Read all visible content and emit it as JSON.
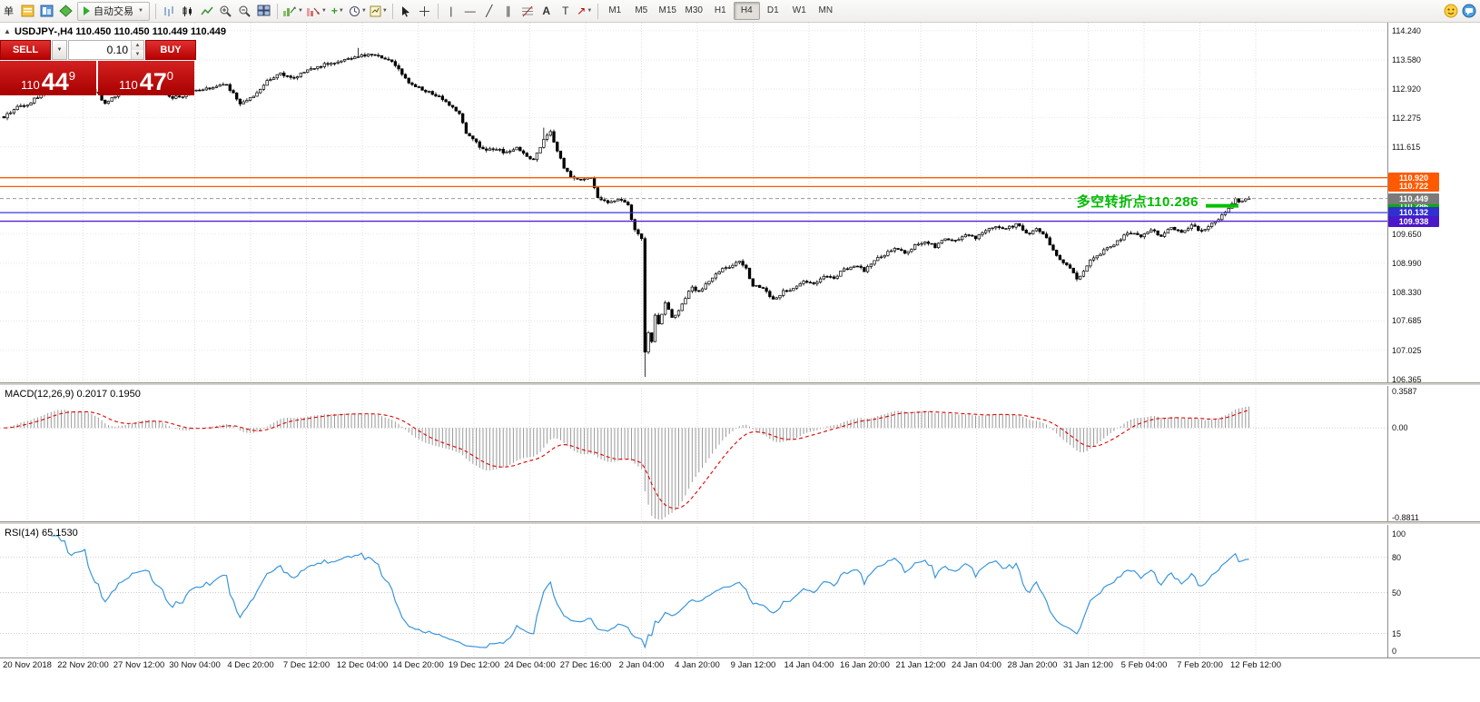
{
  "toolbar": {
    "left_text": "单",
    "autotrading_label": "自动交易",
    "timeframes": [
      "M1",
      "M5",
      "M15",
      "M30",
      "H1",
      "H4",
      "D1",
      "W1",
      "MN"
    ],
    "active_timeframe": "H4",
    "icon_names": [
      "new-order-icon",
      "market-watch-icon",
      "metaeditor-icon",
      "autotrading-play-icon",
      "bar-chart-icon",
      "candlestick-chart-icon",
      "line-chart-icon",
      "zoom-in-icon",
      "zoom-out-icon",
      "tile-windows-icon",
      "profit-chart-icon",
      "loss-chart-icon",
      "indicators-icon",
      "periods-icon",
      "templates-icon",
      "cursor-icon",
      "crosshair-icon",
      "vertical-line-icon",
      "horizontal-line-icon",
      "trendline-icon",
      "channel-icon",
      "fibonacci-icon",
      "text-icon",
      "text-label-icon",
      "arrows-icon",
      "community-icon",
      "chat-icon"
    ]
  },
  "chart": {
    "title": "USDJPY-,H4 110.450 110.450 110.449 110.449",
    "symbol": "USDJPY-",
    "period": "H4",
    "trade": {
      "sell_label": "SELL",
      "buy_label": "BUY",
      "volume": "0.10",
      "sell_price": {
        "prefix": "110",
        "main": "44",
        "sup": "9"
      },
      "buy_price": {
        "prefix": "110",
        "main": "47",
        "sup": "0"
      }
    },
    "annotation": "多空转折点110.286",
    "annotation_color": "#00bb00",
    "levels": [
      {
        "label": "110.920",
        "value": 110.92,
        "line_color": "#ff5a00",
        "tag_bg": "#ff5a00",
        "style": "solid"
      },
      {
        "label": "110.722",
        "value": 110.722,
        "line_color": "#ff5a00",
        "tag_bg": "#ff5a00",
        "style": "solid"
      },
      {
        "label": "110.449",
        "value": 110.449,
        "line_color": "#9a9a9a",
        "tag_bg": "#7a7a7a",
        "style": "dash",
        "current": true
      },
      {
        "label": "110.286",
        "value": 110.286,
        "line_color": "#00c000",
        "tag_bg": "#00b000",
        "style": "segment"
      },
      {
        "label": "110.132",
        "value": 110.132,
        "line_color": "#3a3ae0",
        "tag_bg": "#3030d0",
        "style": "solid"
      },
      {
        "label": "109.938",
        "value": 109.938,
        "line_color": "#5520d8",
        "tag_bg": "#4a18c8",
        "style": "solid"
      }
    ],
    "y_ticks": [
      "114.240",
      "113.580",
      "112.920",
      "112.275",
      "111.615",
      "109.650",
      "108.990",
      "108.330",
      "107.685",
      "107.025",
      "106.365"
    ],
    "x_labels": [
      "20 Nov 2018",
      "22 Nov 20:00",
      "27 Nov 12:00",
      "30 Nov 04:00",
      "4 Dec 20:00",
      "7 Dec 12:00",
      "12 Dec 04:00",
      "14 Dec 20:00",
      "19 Dec 12:00",
      "24 Dec 04:00",
      "27 Dec 16:00",
      "2 Jan 04:00",
      "4 Jan 20:00",
      "9 Jan 12:00",
      "14 Jan 04:00",
      "16 Jan 20:00",
      "21 Jan 12:00",
      "24 Jan 04:00",
      "28 Jan 20:00",
      "31 Jan 12:00",
      "5 Feb 04:00",
      "7 Feb 20:00",
      "12 Feb 12:00"
    ]
  },
  "macd": {
    "label": "MACD(12,26,9) 0.2017 0.1950",
    "fast": 12,
    "slow": 26,
    "signal": 9,
    "value": 0.2017,
    "signal_value": 0.195,
    "axis": [
      {
        "v": 0.3587,
        "label": "0.3587"
      },
      {
        "v": 0.0,
        "label": "0.00"
      },
      {
        "v": -0.8811,
        "label": "-0.8811"
      }
    ],
    "axis_max": 0.3587,
    "axis_min": -0.8811
  },
  "rsi": {
    "label": "RSI(14) 65.1530",
    "period": 14,
    "value": 65.153,
    "axis": [
      {
        "v": 100,
        "label": "100"
      },
      {
        "v": 80,
        "label": "80"
      },
      {
        "v": 50,
        "label": "50"
      },
      {
        "v": 15,
        "label": "15"
      },
      {
        "v": 0,
        "label": "0"
      }
    ],
    "level_lines": [
      80,
      50,
      15
    ],
    "line_color": "#3a96dd"
  },
  "chart_data": {
    "type": "candlestick",
    "symbol": "USDJPY",
    "timeframe": "H4",
    "last_close": 110.449,
    "candle_count": 370,
    "price_range": [
      106.3,
      114.42
    ],
    "anchors": [
      [
        0,
        112.3
      ],
      [
        4,
        112.52
      ],
      [
        8,
        112.62
      ],
      [
        12,
        112.88
      ],
      [
        16,
        113.02
      ],
      [
        20,
        112.95
      ],
      [
        24,
        113.08
      ],
      [
        28,
        112.8
      ],
      [
        30,
        112.58
      ],
      [
        34,
        112.82
      ],
      [
        38,
        113.0
      ],
      [
        42,
        113.08
      ],
      [
        46,
        112.95
      ],
      [
        50,
        112.72
      ],
      [
        54,
        112.8
      ],
      [
        58,
        112.92
      ],
      [
        62,
        112.96
      ],
      [
        66,
        113.02
      ],
      [
        70,
        112.58
      ],
      [
        74,
        112.75
      ],
      [
        78,
        113.12
      ],
      [
        82,
        113.25
      ],
      [
        86,
        113.18
      ],
      [
        90,
        113.38
      ],
      [
        94,
        113.45
      ],
      [
        98,
        113.52
      ],
      [
        102,
        113.62
      ],
      [
        106,
        113.68
      ],
      [
        110,
        113.72
      ],
      [
        113,
        113.62
      ],
      [
        116,
        113.48
      ],
      [
        120,
        113.05
      ],
      [
        124,
        112.92
      ],
      [
        128,
        112.78
      ],
      [
        132,
        112.58
      ],
      [
        135,
        112.35
      ],
      [
        137,
        111.95
      ],
      [
        140,
        111.7
      ],
      [
        143,
        111.52
      ],
      [
        146,
        111.58
      ],
      [
        149,
        111.48
      ],
      [
        152,
        111.62
      ],
      [
        155,
        111.42
      ],
      [
        157,
        111.3
      ],
      [
        160,
        111.78
      ],
      [
        162,
        111.95
      ],
      [
        164,
        111.55
      ],
      [
        166,
        111.15
      ],
      [
        168,
        110.95
      ],
      [
        171,
        110.88
      ],
      [
        174,
        110.92
      ],
      [
        176,
        110.45
      ],
      [
        179,
        110.35
      ],
      [
        182,
        110.42
      ],
      [
        185,
        110.3
      ],
      [
        187,
        109.72
      ],
      [
        189,
        109.58
      ],
      [
        190,
        106.95
      ],
      [
        191,
        107.45
      ],
      [
        192,
        107.25
      ],
      [
        193,
        107.85
      ],
      [
        194,
        107.6
      ],
      [
        196,
        108.1
      ],
      [
        198,
        107.75
      ],
      [
        200,
        107.95
      ],
      [
        202,
        108.2
      ],
      [
        204,
        108.45
      ],
      [
        206,
        108.35
      ],
      [
        209,
        108.6
      ],
      [
        212,
        108.8
      ],
      [
        215,
        108.92
      ],
      [
        218,
        109.02
      ],
      [
        220,
        108.85
      ],
      [
        222,
        108.5
      ],
      [
        225,
        108.42
      ],
      [
        228,
        108.18
      ],
      [
        231,
        108.35
      ],
      [
        234,
        108.42
      ],
      [
        237,
        108.55
      ],
      [
        240,
        108.5
      ],
      [
        243,
        108.72
      ],
      [
        246,
        108.65
      ],
      [
        249,
        108.85
      ],
      [
        252,
        108.95
      ],
      [
        255,
        108.82
      ],
      [
        258,
        109.05
      ],
      [
        261,
        109.18
      ],
      [
        264,
        109.32
      ],
      [
        267,
        109.22
      ],
      [
        270,
        109.38
      ],
      [
        273,
        109.5
      ],
      [
        276,
        109.35
      ],
      [
        279,
        109.55
      ],
      [
        282,
        109.48
      ],
      [
        285,
        109.62
      ],
      [
        288,
        109.55
      ],
      [
        291,
        109.7
      ],
      [
        294,
        109.85
      ],
      [
        297,
        109.75
      ],
      [
        300,
        109.88
      ],
      [
        303,
        109.65
      ],
      [
        306,
        109.75
      ],
      [
        309,
        109.55
      ],
      [
        311,
        109.28
      ],
      [
        313,
        109.1
      ],
      [
        316,
        108.85
      ],
      [
        318,
        108.62
      ],
      [
        320,
        108.78
      ],
      [
        322,
        109.05
      ],
      [
        325,
        109.22
      ],
      [
        328,
        109.35
      ],
      [
        331,
        109.55
      ],
      [
        334,
        109.68
      ],
      [
        337,
        109.6
      ],
      [
        340,
        109.72
      ],
      [
        343,
        109.62
      ],
      [
        346,
        109.78
      ],
      [
        349,
        109.7
      ],
      [
        352,
        109.85
      ],
      [
        355,
        109.72
      ],
      [
        358,
        109.88
      ],
      [
        361,
        110.05
      ],
      [
        363,
        110.25
      ],
      [
        365,
        110.42
      ],
      [
        367,
        110.38
      ],
      [
        369,
        110.449
      ]
    ],
    "wicks": [
      {
        "i": 190,
        "low": 106.42
      },
      {
        "i": 191,
        "low": 106.95
      },
      {
        "i": 105,
        "high": 113.85
      },
      {
        "i": 160,
        "high": 112.05
      }
    ]
  }
}
